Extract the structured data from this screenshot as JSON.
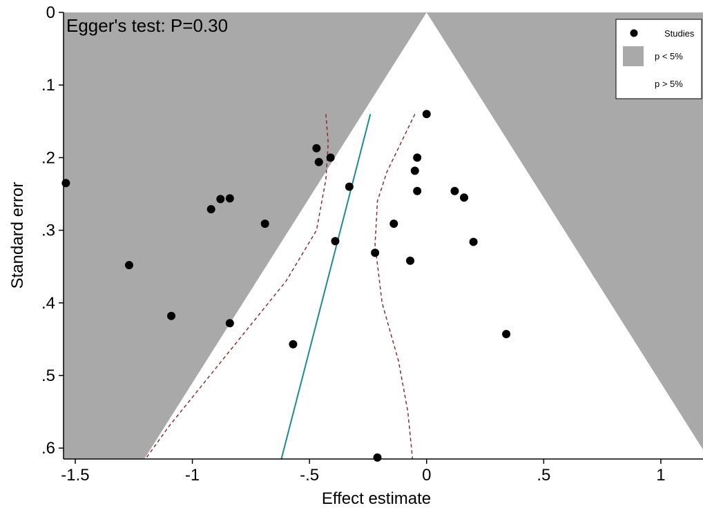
{
  "chart_data": {
    "type": "scatter",
    "annotation": "Egger's test: P=0.30",
    "xlabel": "Effect estimate",
    "ylabel": "Standard error",
    "xlim": [
      -1.55,
      1.18
    ],
    "ylim": [
      0,
      0.615
    ],
    "y_inverted": true,
    "x_ticks": [
      {
        "value": -1.5,
        "label": "-1.5"
      },
      {
        "value": -1,
        "label": "-1"
      },
      {
        "value": -0.5,
        "label": "-.5"
      },
      {
        "value": 0,
        "label": "0"
      },
      {
        "value": 0.5,
        "label": ".5"
      },
      {
        "value": 1,
        "label": "1"
      }
    ],
    "y_ticks": [
      {
        "value": 0,
        "label": "0"
      },
      {
        "value": 0.1,
        "label": ".1"
      },
      {
        "value": 0.2,
        "label": ".2"
      },
      {
        "value": 0.3,
        "label": ".3"
      },
      {
        "value": 0.4,
        "label": ".4"
      },
      {
        "value": 0.5,
        "label": ".5"
      },
      {
        "value": 0.6,
        "label": ".6"
      }
    ],
    "legend": {
      "position": "top-right",
      "items": [
        {
          "label": "Studies",
          "symbol": "dot"
        },
        {
          "label": "p < 5%",
          "symbol": "gray-box"
        },
        {
          "label": "p > 5%",
          "symbol": "white-box"
        }
      ]
    },
    "colors": {
      "significant_region": "#a9a9a9",
      "nonsignificant_region": "#ffffff",
      "points": "#000000",
      "regression_line": "#1a8a94",
      "confidence_band": "#8b2a35"
    },
    "points": [
      {
        "x": -1.54,
        "y": 0.235
      },
      {
        "x": -1.27,
        "y": 0.348
      },
      {
        "x": -1.09,
        "y": 0.418
      },
      {
        "x": -0.92,
        "y": 0.271
      },
      {
        "x": -0.88,
        "y": 0.257
      },
      {
        "x": -0.84,
        "y": 0.256
      },
      {
        "x": -0.84,
        "y": 0.428
      },
      {
        "x": -0.69,
        "y": 0.291
      },
      {
        "x": -0.57,
        "y": 0.457
      },
      {
        "x": -0.47,
        "y": 0.187
      },
      {
        "x": -0.46,
        "y": 0.206
      },
      {
        "x": -0.41,
        "y": 0.2
      },
      {
        "x": -0.39,
        "y": 0.315
      },
      {
        "x": -0.33,
        "y": 0.24
      },
      {
        "x": -0.22,
        "y": 0.331
      },
      {
        "x": -0.21,
        "y": 0.613
      },
      {
        "x": -0.14,
        "y": 0.291
      },
      {
        "x": -0.07,
        "y": 0.342
      },
      {
        "x": -0.05,
        "y": 0.218
      },
      {
        "x": -0.04,
        "y": 0.2
      },
      {
        "x": -0.04,
        "y": 0.246
      },
      {
        "x": 0.0,
        "y": 0.14
      },
      {
        "x": 0.12,
        "y": 0.246
      },
      {
        "x": 0.16,
        "y": 0.255
      },
      {
        "x": 0.2,
        "y": 0.316
      },
      {
        "x": 0.34,
        "y": 0.443
      }
    ],
    "regression_line": [
      {
        "x": -0.24,
        "y": 0.14
      },
      {
        "x": -0.62,
        "y": 0.615
      }
    ],
    "lower_band": [
      {
        "x": -0.43,
        "y": 0.14
      },
      {
        "x": -0.42,
        "y": 0.18
      },
      {
        "x": -0.43,
        "y": 0.23
      },
      {
        "x": -0.47,
        "y": 0.3
      },
      {
        "x": -0.6,
        "y": 0.37
      },
      {
        "x": -0.75,
        "y": 0.43
      },
      {
        "x": -0.95,
        "y": 0.51
      },
      {
        "x": -1.1,
        "y": 0.57
      },
      {
        "x": -1.2,
        "y": 0.615
      }
    ],
    "upper_band": [
      {
        "x": -0.05,
        "y": 0.14
      },
      {
        "x": -0.11,
        "y": 0.18
      },
      {
        "x": -0.17,
        "y": 0.22
      },
      {
        "x": -0.21,
        "y": 0.26
      },
      {
        "x": -0.22,
        "y": 0.32
      },
      {
        "x": -0.19,
        "y": 0.4
      },
      {
        "x": -0.12,
        "y": 0.48
      },
      {
        "x": -0.08,
        "y": 0.55
      },
      {
        "x": -0.06,
        "y": 0.615
      }
    ]
  }
}
